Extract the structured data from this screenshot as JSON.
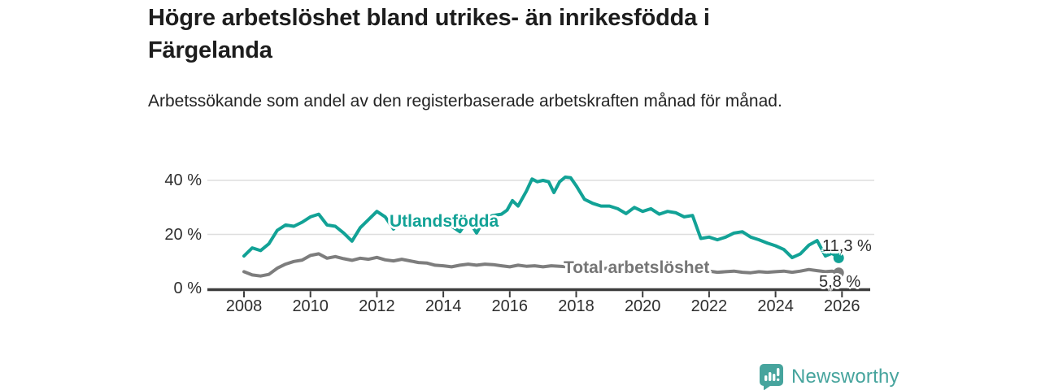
{
  "title": "Högre arbetslöshet bland utrikes- än inrikesfödda i Färgelanda",
  "subtitle": "Arbetssökande som andel av den registerbaserade arbetskraften månad för månad.",
  "colors": {
    "teal": "#12a296",
    "gray": "#7d7d7d",
    "grid": "#dedede",
    "axis": "#3d3d3d",
    "tick_text": "#2e2e2e",
    "logo_teal": "#46a49d"
  },
  "footer": {
    "brand": "Newsworthy"
  },
  "chart_data": {
    "type": "line",
    "title": "Högre arbetslöshet bland utrikes- än inrikesfödda i Färgelanda",
    "subtitle": "Arbetssökande som andel av den registerbaserade arbetskraften månad för månad.",
    "x_axis": {
      "range": [
        2006.9,
        2026.9
      ],
      "ticks": [
        {
          "label": "2008",
          "value": 2008
        },
        {
          "label": "2010",
          "value": 2010
        },
        {
          "label": "2012",
          "value": 2012
        },
        {
          "label": "2014",
          "value": 2014
        },
        {
          "label": "2016",
          "value": 2016
        },
        {
          "label": "2018",
          "value": 2018
        },
        {
          "label": "2020",
          "value": 2020
        },
        {
          "label": "2022",
          "value": 2022
        },
        {
          "label": "2024",
          "value": 2024
        },
        {
          "label": "2026",
          "value": 2026
        }
      ]
    },
    "y_axis": {
      "unit": "%",
      "range": [
        0,
        42
      ],
      "gridlines": [
        20,
        40
      ],
      "ticks": [
        {
          "label": "0 %",
          "value": 0
        },
        {
          "label": "20 %",
          "value": 20
        },
        {
          "label": "40 %",
          "value": 40
        }
      ]
    },
    "legend_position": "inline-labels",
    "grid": true,
    "series": [
      {
        "name": "Utlandsfödda",
        "color": "#12a296",
        "end_label": "11,3 %",
        "end_value": 11.3,
        "points": [
          [
            2008.0,
            12.0
          ],
          [
            2008.25,
            15.0
          ],
          [
            2008.5,
            14.0
          ],
          [
            2008.75,
            16.5
          ],
          [
            2009.0,
            21.5
          ],
          [
            2009.25,
            23.5
          ],
          [
            2009.5,
            23.0
          ],
          [
            2009.75,
            24.5
          ],
          [
            2010.0,
            26.5
          ],
          [
            2010.25,
            27.5
          ],
          [
            2010.5,
            23.5
          ],
          [
            2010.75,
            23.0
          ],
          [
            2011.0,
            20.5
          ],
          [
            2011.25,
            17.5
          ],
          [
            2011.5,
            22.5
          ],
          [
            2011.75,
            25.5
          ],
          [
            2012.0,
            28.5
          ],
          [
            2012.25,
            26.5
          ],
          [
            2012.5,
            22.0
          ],
          [
            2012.75,
            25.5
          ],
          [
            2013.0,
            24.0
          ],
          [
            2013.25,
            26.0
          ],
          [
            2013.5,
            24.5
          ],
          [
            2013.75,
            26.0
          ],
          [
            2014.0,
            25.0
          ],
          [
            2014.25,
            23.0
          ],
          [
            2014.5,
            21.0
          ],
          [
            2014.75,
            25.5
          ],
          [
            2015.0,
            20.5
          ],
          [
            2015.25,
            26.0
          ],
          [
            2015.5,
            27.0
          ],
          [
            2015.75,
            27.5
          ],
          [
            2015.92,
            29.0
          ],
          [
            2016.08,
            32.5
          ],
          [
            2016.25,
            30.5
          ],
          [
            2016.5,
            36.0
          ],
          [
            2016.67,
            40.5
          ],
          [
            2016.83,
            39.5
          ],
          [
            2017.0,
            40.0
          ],
          [
            2017.17,
            39.5
          ],
          [
            2017.33,
            35.5
          ],
          [
            2017.5,
            39.5
          ],
          [
            2017.67,
            41.2
          ],
          [
            2017.83,
            41.0
          ],
          [
            2018.0,
            38.0
          ],
          [
            2018.25,
            33.0
          ],
          [
            2018.5,
            31.5
          ],
          [
            2018.75,
            30.5
          ],
          [
            2019.0,
            30.5
          ],
          [
            2019.25,
            29.5
          ],
          [
            2019.5,
            27.7
          ],
          [
            2019.75,
            30.0
          ],
          [
            2020.0,
            28.5
          ],
          [
            2020.25,
            29.5
          ],
          [
            2020.5,
            27.5
          ],
          [
            2020.75,
            28.5
          ],
          [
            2021.0,
            28.0
          ],
          [
            2021.25,
            26.5
          ],
          [
            2021.5,
            27.0
          ],
          [
            2021.75,
            18.5
          ],
          [
            2022.0,
            19.0
          ],
          [
            2022.25,
            18.0
          ],
          [
            2022.5,
            19.0
          ],
          [
            2022.75,
            20.5
          ],
          [
            2023.0,
            21.0
          ],
          [
            2023.25,
            19.0
          ],
          [
            2023.5,
            18.0
          ],
          [
            2023.75,
            16.8
          ],
          [
            2024.0,
            15.8
          ],
          [
            2024.25,
            14.4
          ],
          [
            2024.5,
            11.4
          ],
          [
            2024.75,
            12.8
          ],
          [
            2025.0,
            16.0
          ],
          [
            2025.25,
            17.7
          ],
          [
            2025.5,
            12.0
          ],
          [
            2025.7,
            13.0
          ],
          [
            2025.9,
            11.3
          ]
        ]
      },
      {
        "name": "Total arbetslöshet",
        "color": "#7d7d7d",
        "end_label": "5,8 %",
        "end_value": 5.8,
        "points": [
          [
            2008.0,
            6.2
          ],
          [
            2008.25,
            5.0
          ],
          [
            2008.5,
            4.6
          ],
          [
            2008.75,
            5.2
          ],
          [
            2009.0,
            7.5
          ],
          [
            2009.25,
            9.0
          ],
          [
            2009.5,
            10.0
          ],
          [
            2009.75,
            10.5
          ],
          [
            2010.0,
            12.2
          ],
          [
            2010.25,
            12.8
          ],
          [
            2010.5,
            11.2
          ],
          [
            2010.75,
            11.8
          ],
          [
            2011.0,
            11.0
          ],
          [
            2011.25,
            10.4
          ],
          [
            2011.5,
            11.2
          ],
          [
            2011.75,
            10.8
          ],
          [
            2012.0,
            11.5
          ],
          [
            2012.25,
            10.6
          ],
          [
            2012.5,
            10.2
          ],
          [
            2012.75,
            10.8
          ],
          [
            2013.0,
            10.2
          ],
          [
            2013.25,
            9.6
          ],
          [
            2013.5,
            9.4
          ],
          [
            2013.75,
            8.6
          ],
          [
            2014.0,
            8.4
          ],
          [
            2014.25,
            8.0
          ],
          [
            2014.5,
            8.6
          ],
          [
            2014.75,
            9.0
          ],
          [
            2015.0,
            8.6
          ],
          [
            2015.25,
            9.0
          ],
          [
            2015.5,
            8.8
          ],
          [
            2015.75,
            8.4
          ],
          [
            2016.0,
            8.0
          ],
          [
            2016.25,
            8.6
          ],
          [
            2016.5,
            8.2
          ],
          [
            2016.75,
            8.4
          ],
          [
            2017.0,
            8.0
          ],
          [
            2017.25,
            8.4
          ],
          [
            2017.5,
            8.2
          ],
          [
            2017.75,
            8.0
          ],
          [
            2018.0,
            7.6
          ],
          [
            2018.25,
            8.0
          ],
          [
            2018.5,
            7.4
          ],
          [
            2018.75,
            7.2
          ],
          [
            2019.0,
            7.6
          ],
          [
            2019.25,
            7.2
          ],
          [
            2019.5,
            7.0
          ],
          [
            2019.75,
            7.4
          ],
          [
            2020.0,
            7.0
          ],
          [
            2020.25,
            7.4
          ],
          [
            2020.5,
            6.8
          ],
          [
            2020.75,
            6.6
          ],
          [
            2021.0,
            7.0
          ],
          [
            2021.25,
            6.6
          ],
          [
            2021.5,
            6.4
          ],
          [
            2021.75,
            6.2
          ],
          [
            2022.0,
            6.4
          ],
          [
            2022.25,
            6.0
          ],
          [
            2022.5,
            6.2
          ],
          [
            2022.75,
            6.4
          ],
          [
            2023.0,
            6.0
          ],
          [
            2023.25,
            5.8
          ],
          [
            2023.5,
            6.2
          ],
          [
            2023.75,
            6.0
          ],
          [
            2024.0,
            6.2
          ],
          [
            2024.25,
            6.4
          ],
          [
            2024.5,
            6.0
          ],
          [
            2024.75,
            6.4
          ],
          [
            2025.0,
            7.0
          ],
          [
            2025.25,
            6.6
          ],
          [
            2025.5,
            6.2
          ],
          [
            2025.7,
            6.4
          ],
          [
            2025.9,
            5.8
          ]
        ]
      }
    ]
  }
}
